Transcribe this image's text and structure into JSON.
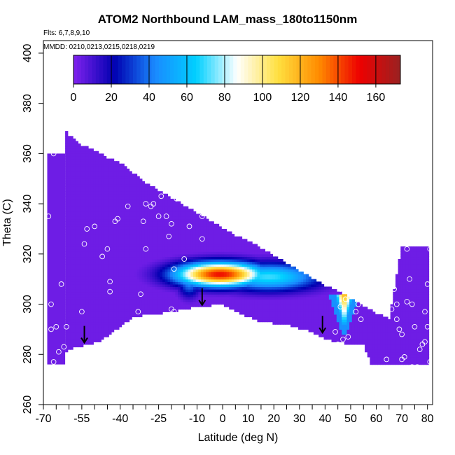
{
  "chart_data": {
    "type": "heatmap",
    "title": "ATOM2 Northbound LAM_mass_180to1150nm",
    "subtitle_flights": "Flts: 6,7,8,9,10",
    "subtitle_dates": "MMDD: 0210,0213,0215,0218,0219",
    "xlabel": "Latitude (deg N)",
    "ylabel": "Theta (C)",
    "xlim": [
      -70,
      82
    ],
    "ylim": [
      260,
      405
    ],
    "x_ticks": [
      -70,
      -55,
      -40,
      -25,
      -10,
      0,
      10,
      20,
      30,
      40,
      50,
      60,
      70,
      80
    ],
    "x_minor_ticks": [
      -65,
      -60,
      -50,
      -45,
      -35,
      -30,
      -20,
      -15,
      -5,
      5,
      15,
      25,
      35,
      45,
      55,
      65,
      75
    ],
    "y_ticks": [
      260,
      280,
      300,
      320,
      340,
      360,
      380,
      400
    ],
    "colorbar": {
      "min": 0,
      "max": 173,
      "ticks": [
        0,
        20,
        40,
        60,
        80,
        100,
        120,
        140,
        160
      ],
      "colors": [
        "#8022ee",
        "#0000b0",
        "#1a8aff",
        "#00d0ff",
        "#ffffff",
        "#ffe040",
        "#ff8c00",
        "#ee0000",
        "#992222"
      ]
    },
    "background_value": 3,
    "domain_top": [
      [
        -61.5,
        370
      ],
      [
        -60,
        367
      ],
      [
        -55,
        363
      ],
      [
        -50,
        361
      ],
      [
        -45,
        358
      ],
      [
        -40,
        356
      ],
      [
        -35,
        352
      ],
      [
        -30,
        348
      ],
      [
        -25,
        345
      ],
      [
        -20,
        342
      ],
      [
        -15,
        339
      ],
      [
        -10,
        336
      ],
      [
        -5,
        333
      ],
      [
        0,
        330
      ],
      [
        5,
        327
      ],
      [
        10,
        325
      ],
      [
        15,
        322
      ],
      [
        20,
        319
      ],
      [
        25,
        316
      ],
      [
        30,
        313
      ],
      [
        35,
        310
      ],
      [
        40,
        307
      ],
      [
        45,
        305
      ],
      [
        50,
        302
      ],
      [
        55,
        299
      ],
      [
        60,
        296
      ],
      [
        65,
        294
      ],
      [
        70,
        323
      ],
      [
        80,
        323
      ]
    ],
    "domain_bottom": [
      [
        -68.5,
        276
      ],
      [
        -64,
        280
      ],
      [
        -57,
        283
      ],
      [
        -48,
        285
      ],
      [
        -35,
        295
      ],
      [
        -20,
        297
      ],
      [
        -10,
        299
      ],
      [
        0,
        300
      ],
      [
        5,
        297
      ],
      [
        15,
        293
      ],
      [
        25,
        292
      ],
      [
        35,
        289
      ],
      [
        40,
        286
      ],
      [
        45,
        285
      ],
      [
        50,
        284
      ],
      [
        55,
        284
      ],
      [
        58,
        276
      ],
      [
        70,
        276
      ],
      [
        80,
        276
      ]
    ],
    "blobs": [
      {
        "name": "tropical-plume",
        "lat": -1,
        "theta": 312,
        "sx": 12,
        "sy": 3.3,
        "peak": 150
      },
      {
        "name": "tropical-plume-east",
        "lat": 18,
        "theta": 311,
        "sx": 14,
        "sy": 3.8,
        "peak": 70
      },
      {
        "name": "tropical-plume-west",
        "lat": -13,
        "theta": 309,
        "sx": 3,
        "sy": 4,
        "peak": 45
      }
    ],
    "funnel": {
      "lat": 47.5,
      "theta_top": 304,
      "theta_bottom": 287,
      "half_width_top": 6,
      "peak": 120
    },
    "samples": [
      [
        -68,
        335
      ],
      [
        -67,
        300
      ],
      [
        -67,
        290
      ],
      [
        -66,
        277
      ],
      [
        -66,
        360
      ],
      [
        -65,
        291
      ],
      [
        -64,
        281
      ],
      [
        -63,
        308
      ],
      [
        -62,
        283
      ],
      [
        -61,
        291
      ],
      [
        -55,
        297
      ],
      [
        -54,
        324
      ],
      [
        -53,
        330
      ],
      [
        -50,
        331
      ],
      [
        -47,
        319
      ],
      [
        -45,
        322
      ],
      [
        -44,
        305
      ],
      [
        -44,
        309
      ],
      [
        -43,
        286
      ],
      [
        -42,
        333
      ],
      [
        -41,
        334
      ],
      [
        -37,
        339
      ],
      [
        -33,
        297
      ],
      [
        -32,
        304
      ],
      [
        -31,
        333
      ],
      [
        -30,
        340
      ],
      [
        -30,
        322
      ],
      [
        -28,
        339
      ],
      [
        -27,
        340
      ],
      [
        -25,
        335
      ],
      [
        -24,
        343
      ],
      [
        -22,
        335
      ],
      [
        -21,
        327
      ],
      [
        -20,
        332
      ],
      [
        -20,
        298
      ],
      [
        -19,
        297
      ],
      [
        -19,
        314
      ],
      [
        -18,
        342
      ],
      [
        -17,
        344
      ],
      [
        -15,
        318
      ],
      [
        -13,
        331
      ],
      [
        -11,
        348
      ],
      [
        -10,
        346
      ],
      [
        -8,
        335
      ],
      [
        -8,
        326
      ],
      [
        -5,
        336
      ],
      [
        34,
        314
      ],
      [
        41,
        322
      ],
      [
        43,
        316
      ],
      [
        46,
        306
      ],
      [
        47,
        286
      ],
      [
        50,
        306
      ],
      [
        51,
        322
      ],
      [
        52,
        297
      ],
      [
        53,
        300
      ],
      [
        55,
        316
      ],
      [
        56,
        302
      ],
      [
        57,
        313
      ],
      [
        59,
        318
      ],
      [
        60,
        320
      ],
      [
        61,
        300
      ],
      [
        63,
        311
      ],
      [
        64,
        278
      ],
      [
        65,
        303
      ],
      [
        66,
        311
      ],
      [
        67,
        306
      ],
      [
        68,
        300
      ],
      [
        68,
        294
      ],
      [
        69,
        290
      ],
      [
        70,
        278
      ],
      [
        72,
        301
      ],
      [
        72,
        322
      ],
      [
        73,
        310
      ],
      [
        75,
        291
      ],
      [
        76,
        275
      ],
      [
        78,
        284
      ],
      [
        79,
        297
      ],
      [
        80,
        308
      ],
      [
        81,
        322
      ],
      [
        82,
        278
      ],
      [
        71,
        279
      ],
      [
        74,
        275
      ],
      [
        62,
        300
      ],
      [
        54,
        294
      ],
      [
        49,
        287
      ],
      [
        48,
        302
      ],
      [
        46,
        299
      ],
      [
        45,
        284
      ],
      [
        44,
        289
      ],
      [
        66,
        298
      ],
      [
        77,
        282
      ],
      [
        70,
        288
      ],
      [
        74,
        300
      ],
      [
        79,
        285
      ],
      [
        81,
        277
      ],
      [
        80,
        291
      ]
    ],
    "arrows": [
      [
        -54,
        288
      ],
      [
        -8,
        303
      ],
      [
        39,
        292
      ]
    ]
  }
}
